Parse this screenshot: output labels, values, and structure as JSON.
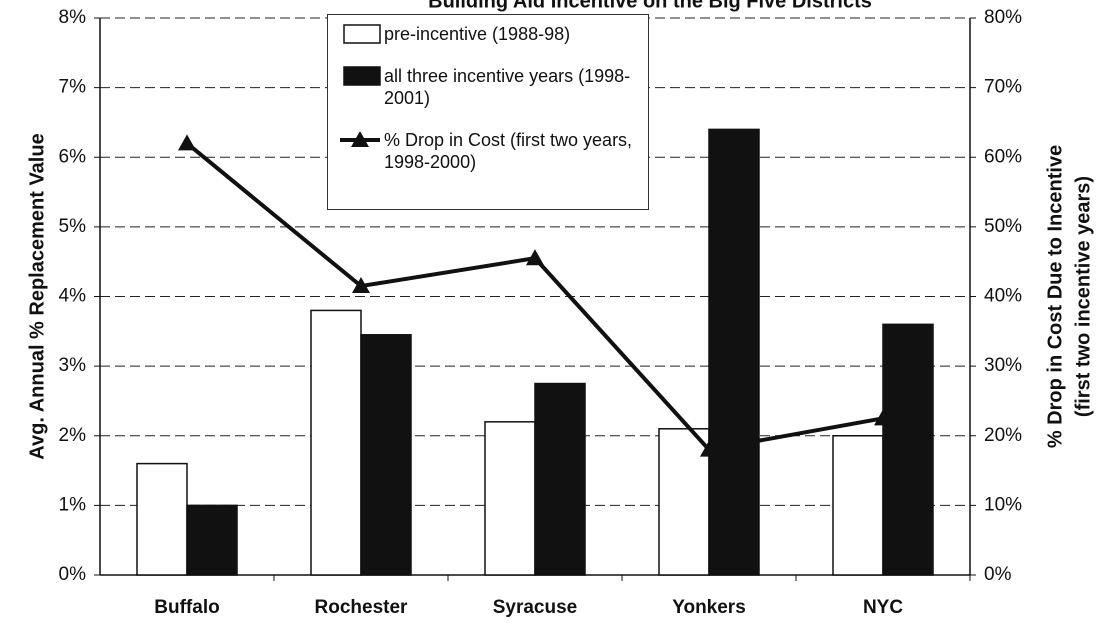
{
  "chart_data": {
    "type": "bar_line",
    "title": "Building Aid Incentive on the Big Five Districts",
    "categories": [
      "Buffalo",
      "Rochester",
      "Syracuse",
      "Yonkers",
      "NYC"
    ],
    "series": [
      {
        "name": "pre-incentive (1988-98)",
        "type": "bar",
        "color": "#ffffff",
        "values": [
          1.6,
          3.8,
          2.2,
          2.1,
          2.0
        ]
      },
      {
        "name": "all three incentive years (1998-2001)",
        "type": "bar",
        "color": "#111111",
        "values": [
          1.0,
          3.45,
          2.75,
          6.4,
          3.6
        ]
      },
      {
        "name": "% Drop in Cost (first two years, 1998-2000)",
        "type": "line",
        "axis": "y2",
        "color": "#111111",
        "values": [
          62,
          41.5,
          45.5,
          18,
          22.5
        ]
      }
    ],
    "ylabel": "Avg. Annual % Replacement Value",
    "y2label": [
      "% Drop in Cost Due to Incentive",
      "(first two incentive years)"
    ],
    "ylim": [
      0,
      8
    ],
    "yticks": [
      {
        "value": 0,
        "label": "0%"
      },
      {
        "value": 1,
        "label": "1%"
      },
      {
        "value": 2,
        "label": "2%"
      },
      {
        "value": 3,
        "label": "3%"
      },
      {
        "value": 4,
        "label": "4%"
      },
      {
        "value": 5,
        "label": "5%"
      },
      {
        "value": 6,
        "label": "6%"
      },
      {
        "value": 7,
        "label": "7%"
      },
      {
        "value": 8,
        "label": "8%"
      }
    ],
    "y2lim": [
      0,
      80
    ],
    "y2ticks": [
      {
        "value": 0,
        "label": "0%"
      },
      {
        "value": 10,
        "label": "10%"
      },
      {
        "value": 20,
        "label": "20%"
      },
      {
        "value": 30,
        "label": "30%"
      },
      {
        "value": 40,
        "label": "40%"
      },
      {
        "value": 50,
        "label": "50%"
      },
      {
        "value": 60,
        "label": "60%"
      },
      {
        "value": 70,
        "label": "70%"
      },
      {
        "value": 80,
        "label": "80%"
      }
    ],
    "grid": true
  }
}
